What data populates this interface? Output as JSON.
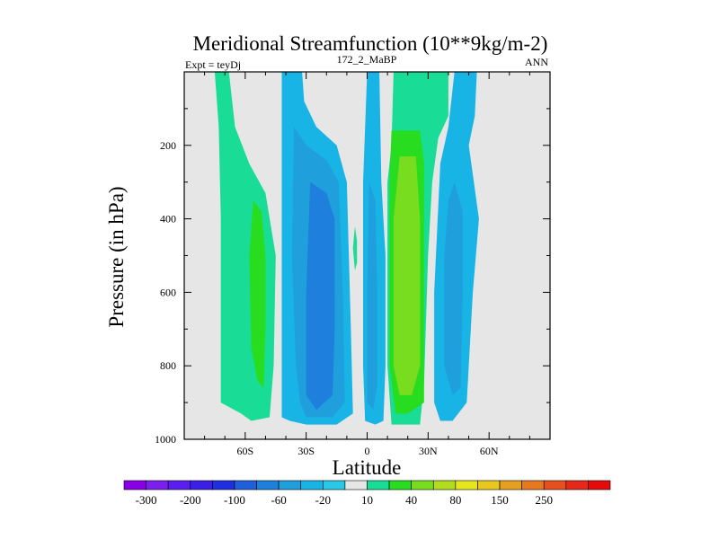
{
  "chart_data": {
    "type": "heatmap",
    "title": "Meridional Streamfunction (10**9kg/m-2)",
    "subtitle_left": "Expt = teyDj",
    "subtitle_center": "172_2_MaBP",
    "subtitle_right": "ANN",
    "xlabel": "Latitude",
    "ylabel": "Pressure (in hPa)",
    "xlim": [
      -90,
      90
    ],
    "ylim": [
      0,
      1000
    ],
    "y_inverted": true,
    "x_ticks": [
      {
        "value": -60,
        "label": "60S"
      },
      {
        "value": -30,
        "label": "30S"
      },
      {
        "value": 0,
        "label": "0"
      },
      {
        "value": 30,
        "label": "30N"
      },
      {
        "value": 60,
        "label": "60N"
      }
    ],
    "y_ticks": [
      {
        "value": 200,
        "label": "200"
      },
      {
        "value": 400,
        "label": "400"
      },
      {
        "value": 600,
        "label": "600"
      },
      {
        "value": 800,
        "label": "800"
      },
      {
        "value": 1000,
        "label": "1000"
      }
    ],
    "background_color": "#e6e6e6",
    "colorbar": {
      "colors": [
        "#8a00e6",
        "#7a1ff0",
        "#5a1ff0",
        "#3c1fe6",
        "#1f2fe0",
        "#1f5fdc",
        "#1f7fdc",
        "#1f9fdc",
        "#19b4e6",
        "#28c8e6",
        "#e6e6e6",
        "#19dc96",
        "#28dc1f",
        "#78dc1f",
        "#b4dc1f",
        "#e6e61f",
        "#e6c81f",
        "#e6a01f",
        "#e6781f",
        "#e6501f",
        "#e62819",
        "#e60a0a"
      ],
      "labels": [
        "-300",
        "-200",
        "-100",
        "-60",
        "-20",
        "10",
        "40",
        "80",
        "150",
        "250"
      ]
    },
    "regions": [
      {
        "name": "sh-outer-positive-cell",
        "level": 10,
        "color": "#19dc96",
        "polygon": [
          [
            -75,
            0
          ],
          [
            -68,
            0
          ],
          [
            -65,
            150
          ],
          [
            -58,
            250
          ],
          [
            -50,
            330
          ],
          [
            -45,
            500
          ],
          [
            -46,
            800
          ],
          [
            -48,
            940
          ],
          [
            -57,
            950
          ],
          [
            -62,
            930
          ],
          [
            -72,
            900
          ],
          [
            -72,
            400
          ],
          [
            -73,
            150
          ]
        ]
      },
      {
        "name": "sh-outer-positive-core",
        "level": 40,
        "color": "#28dc1f",
        "polygon": [
          [
            -56,
            350
          ],
          [
            -52,
            380
          ],
          [
            -50,
            500
          ],
          [
            -50,
            700
          ],
          [
            -51,
            860
          ],
          [
            -54,
            840
          ],
          [
            -57,
            750
          ],
          [
            -58,
            500
          ]
        ]
      },
      {
        "name": "sh-negative-cell",
        "level": -20,
        "color": "#19b4e6",
        "polygon": [
          [
            -42,
            0
          ],
          [
            -32,
            0
          ],
          [
            -31,
            80
          ],
          [
            -25,
            150
          ],
          [
            -15,
            200
          ],
          [
            -10,
            300
          ],
          [
            -8,
            700
          ],
          [
            -7,
            930
          ],
          [
            -15,
            960
          ],
          [
            -30,
            960
          ],
          [
            -38,
            950
          ],
          [
            -42,
            940
          ],
          [
            -42,
            500
          ]
        ]
      },
      {
        "name": "sh-negative-mid",
        "level": -60,
        "color": "#1f9fdc",
        "polygon": [
          [
            -36,
            150
          ],
          [
            -30,
            200
          ],
          [
            -20,
            240
          ],
          [
            -14,
            300
          ],
          [
            -12,
            600
          ],
          [
            -11,
            900
          ],
          [
            -17,
            940
          ],
          [
            -30,
            940
          ],
          [
            -33,
            900
          ],
          [
            -35,
            800
          ],
          [
            -37,
            500
          ]
        ]
      },
      {
        "name": "sh-negative-core",
        "level": -100,
        "color": "#1f7fdc",
        "polygon": [
          [
            -28,
            300
          ],
          [
            -20,
            330
          ],
          [
            -16,
            400
          ],
          [
            -16,
            700
          ],
          [
            -17,
            880
          ],
          [
            -25,
            920
          ],
          [
            -30,
            880
          ],
          [
            -30,
            600
          ]
        ]
      },
      {
        "name": "equatorial-positive-sliver",
        "level": 10,
        "color": "#19dc96",
        "polygon": [
          [
            -6,
            420
          ],
          [
            -5,
            460
          ],
          [
            -5,
            520
          ],
          [
            -6,
            540
          ],
          [
            -7,
            480
          ]
        ]
      },
      {
        "name": "nh-equatorial-negative",
        "level": -20,
        "color": "#19b4e6",
        "polygon": [
          [
            0,
            0
          ],
          [
            6,
            0
          ],
          [
            7,
            300
          ],
          [
            9,
            500
          ],
          [
            9,
            800
          ],
          [
            8,
            950
          ],
          [
            4,
            960
          ],
          [
            -1,
            950
          ],
          [
            -2,
            800
          ],
          [
            -2,
            300
          ]
        ]
      },
      {
        "name": "nh-equatorial-negative-core",
        "level": -60,
        "color": "#1f9fdc",
        "polygon": [
          [
            1,
            300
          ],
          [
            4,
            350
          ],
          [
            5,
            600
          ],
          [
            5,
            850
          ],
          [
            3,
            920
          ],
          [
            0,
            900
          ],
          [
            0,
            600
          ]
        ]
      },
      {
        "name": "nh-positive-cell",
        "level": 10,
        "color": "#19dc96",
        "polygon": [
          [
            13,
            0
          ],
          [
            40,
            0
          ],
          [
            40,
            120
          ],
          [
            35,
            180
          ],
          [
            32,
            300
          ],
          [
            30,
            500
          ],
          [
            28,
            850
          ],
          [
            26,
            960
          ],
          [
            20,
            960
          ],
          [
            12,
            960
          ],
          [
            10,
            800
          ],
          [
            10,
            300
          ],
          [
            12,
            200
          ]
        ]
      },
      {
        "name": "nh-positive-mid",
        "level": 40,
        "color": "#28dc1f",
        "polygon": [
          [
            12,
            160
          ],
          [
            26,
            160
          ],
          [
            28,
            250
          ],
          [
            28,
            600
          ],
          [
            28,
            900
          ],
          [
            20,
            930
          ],
          [
            14,
            930
          ],
          [
            11,
            800
          ],
          [
            11,
            300
          ]
        ]
      },
      {
        "name": "nh-positive-core",
        "level": 80,
        "color": "#78dc1f",
        "polygon": [
          [
            16,
            230
          ],
          [
            24,
            230
          ],
          [
            26,
            400
          ],
          [
            26,
            800
          ],
          [
            22,
            880
          ],
          [
            16,
            880
          ],
          [
            13,
            800
          ],
          [
            13,
            400
          ]
        ]
      },
      {
        "name": "nh-outer-negative-cell",
        "level": -20,
        "color": "#19b4e6",
        "polygon": [
          [
            43,
            0
          ],
          [
            54,
            0
          ],
          [
            53,
            120
          ],
          [
            50,
            200
          ],
          [
            55,
            400
          ],
          [
            52,
            600
          ],
          [
            50,
            800
          ],
          [
            49,
            900
          ],
          [
            42,
            950
          ],
          [
            36,
            950
          ],
          [
            33,
            900
          ],
          [
            33,
            600
          ],
          [
            36,
            250
          ],
          [
            40,
            150
          ]
        ]
      },
      {
        "name": "nh-outer-negative-core",
        "level": -60,
        "color": "#1f9fdc",
        "polygon": [
          [
            43,
            300
          ],
          [
            47,
            380
          ],
          [
            47,
            600
          ],
          [
            46,
            860
          ],
          [
            42,
            880
          ],
          [
            38,
            800
          ],
          [
            38,
            500
          ],
          [
            40,
            350
          ]
        ]
      }
    ]
  }
}
